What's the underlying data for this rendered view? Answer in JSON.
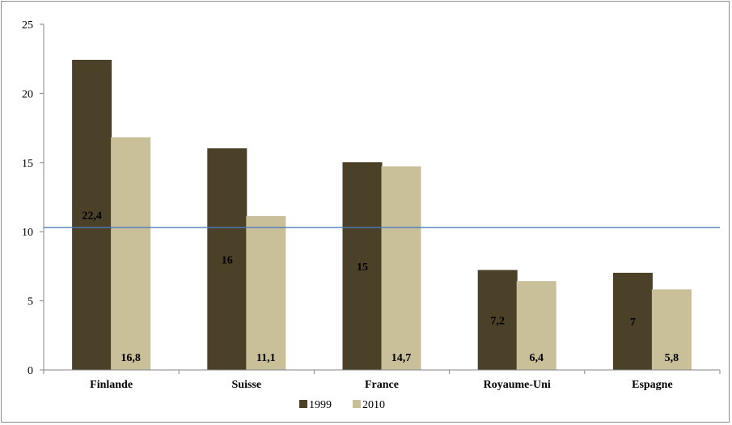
{
  "chart_data": {
    "type": "bar",
    "categories": [
      "Finlande",
      "Suisse",
      "France",
      "Royaume-Uni",
      "Espagne"
    ],
    "series": [
      {
        "name": "1999",
        "values": [
          22.4,
          16,
          15,
          7.2,
          7
        ],
        "labels": [
          "22,4",
          "16",
          "15",
          "7,2",
          "7"
        ],
        "color": "#4b4129"
      },
      {
        "name": "2010",
        "values": [
          16.8,
          11.1,
          14.7,
          6.4,
          5.8
        ],
        "labels": [
          "16,8",
          "11,1",
          "14,7",
          "6,4",
          "5,8"
        ],
        "color": "#c9bf99"
      }
    ],
    "reference_line": {
      "value": 10.3,
      "color": "#4a7ebb"
    },
    "ylim": [
      0,
      25
    ],
    "yticks": [
      "0",
      "5",
      "10",
      "15",
      "20",
      "25"
    ],
    "grid": false,
    "legend_position": "bottom"
  }
}
